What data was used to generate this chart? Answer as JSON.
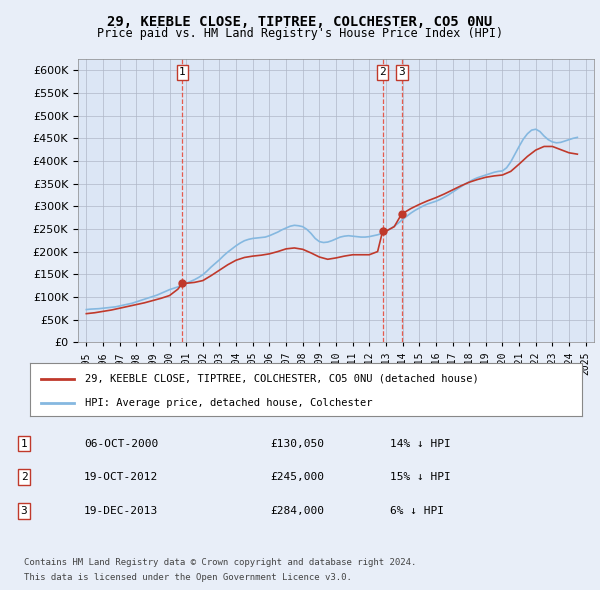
{
  "title": "29, KEEBLE CLOSE, TIPTREE, COLCHESTER, CO5 0NU",
  "subtitle": "Price paid vs. HM Land Registry's House Price Index (HPI)",
  "bg_color": "#e8eef8",
  "plot_bg_color": "#dce6f5",
  "legend_line1": "29, KEEBLE CLOSE, TIPTREE, COLCHESTER, CO5 0NU (detached house)",
  "legend_line2": "HPI: Average price, detached house, Colchester",
  "footer1": "Contains HM Land Registry data © Crown copyright and database right 2024.",
  "footer2": "This data is licensed under the Open Government Licence v3.0.",
  "transactions": [
    {
      "num": 1,
      "date": "06-OCT-2000",
      "price": "£130,050",
      "hpi": "14% ↓ HPI",
      "year": 2000.77
    },
    {
      "num": 2,
      "date": "19-OCT-2012",
      "price": "£245,000",
      "hpi": "15% ↓ HPI",
      "year": 2012.8
    },
    {
      "num": 3,
      "date": "19-DEC-2013",
      "price": "£284,000",
      "hpi": "6% ↓ HPI",
      "year": 2013.96
    }
  ],
  "transaction_prices": [
    130050,
    245000,
    284000
  ],
  "transaction_years": [
    2000.77,
    2012.8,
    2013.96
  ],
  "ylim": [
    0,
    625000
  ],
  "yticks": [
    0,
    50000,
    100000,
    150000,
    200000,
    250000,
    300000,
    350000,
    400000,
    450000,
    500000,
    550000,
    600000
  ],
  "xlim_start": 1994.5,
  "xlim_end": 2025.5,
  "xticks": [
    1995,
    1996,
    1997,
    1998,
    1999,
    2000,
    2001,
    2002,
    2003,
    2004,
    2005,
    2006,
    2007,
    2008,
    2009,
    2010,
    2011,
    2012,
    2013,
    2014,
    2015,
    2016,
    2017,
    2018,
    2019,
    2020,
    2021,
    2022,
    2023,
    2024,
    2025
  ],
  "property_color": "#c0392b",
  "hpi_color": "#85b8e0",
  "dashed_line_color": "#e74c3c",
  "marker_color": "#c0392b",
  "hpi_years": [
    1995.0,
    1995.25,
    1995.5,
    1995.75,
    1996.0,
    1996.25,
    1996.5,
    1996.75,
    1997.0,
    1997.25,
    1997.5,
    1997.75,
    1998.0,
    1998.25,
    1998.5,
    1998.75,
    1999.0,
    1999.25,
    1999.5,
    1999.75,
    2000.0,
    2000.25,
    2000.5,
    2000.75,
    2001.0,
    2001.25,
    2001.5,
    2001.75,
    2002.0,
    2002.25,
    2002.5,
    2002.75,
    2003.0,
    2003.25,
    2003.5,
    2003.75,
    2004.0,
    2004.25,
    2004.5,
    2004.75,
    2005.0,
    2005.25,
    2005.5,
    2005.75,
    2006.0,
    2006.25,
    2006.5,
    2006.75,
    2007.0,
    2007.25,
    2007.5,
    2007.75,
    2008.0,
    2008.25,
    2008.5,
    2008.75,
    2009.0,
    2009.25,
    2009.5,
    2009.75,
    2010.0,
    2010.25,
    2010.5,
    2010.75,
    2011.0,
    2011.25,
    2011.5,
    2011.75,
    2012.0,
    2012.25,
    2012.5,
    2012.75,
    2013.0,
    2013.25,
    2013.5,
    2013.75,
    2014.0,
    2014.25,
    2014.5,
    2014.75,
    2015.0,
    2015.25,
    2015.5,
    2015.75,
    2016.0,
    2016.25,
    2016.5,
    2016.75,
    2017.0,
    2017.25,
    2017.5,
    2017.75,
    2018.0,
    2018.25,
    2018.5,
    2018.75,
    2019.0,
    2019.25,
    2019.5,
    2019.75,
    2020.0,
    2020.25,
    2020.5,
    2020.75,
    2021.0,
    2021.25,
    2021.5,
    2021.75,
    2022.0,
    2022.25,
    2022.5,
    2022.75,
    2023.0,
    2023.25,
    2023.5,
    2023.75,
    2024.0,
    2024.25,
    2024.5
  ],
  "hpi_values": [
    72000,
    73000,
    73500,
    74000,
    75000,
    76000,
    77000,
    78000,
    80000,
    82000,
    84000,
    86000,
    89000,
    92000,
    95000,
    98000,
    101000,
    104000,
    108000,
    112000,
    116000,
    119000,
    122000,
    126000,
    130000,
    134000,
    138000,
    143000,
    149000,
    157000,
    166000,
    174000,
    182000,
    191000,
    199000,
    206000,
    213000,
    219000,
    224000,
    227000,
    229000,
    230000,
    231000,
    232000,
    235000,
    239000,
    243000,
    248000,
    252000,
    256000,
    258000,
    257000,
    255000,
    249000,
    240000,
    229000,
    222000,
    220000,
    221000,
    224000,
    228000,
    232000,
    234000,
    235000,
    234000,
    233000,
    232000,
    232000,
    233000,
    235000,
    237000,
    240000,
    245000,
    250000,
    256000,
    263000,
    271000,
    278000,
    285000,
    291000,
    296000,
    301000,
    305000,
    308000,
    311000,
    315000,
    320000,
    325000,
    331000,
    337000,
    343000,
    349000,
    354000,
    359000,
    363000,
    366000,
    369000,
    372000,
    375000,
    377000,
    378000,
    385000,
    398000,
    415000,
    432000,
    448000,
    460000,
    468000,
    470000,
    465000,
    455000,
    447000,
    442000,
    440000,
    441000,
    444000,
    447000,
    450000,
    452000
  ],
  "property_years": [
    1995.0,
    1995.5,
    1996.0,
    1996.5,
    1997.0,
    1997.5,
    1998.0,
    1998.5,
    1999.0,
    1999.5,
    2000.0,
    2000.5,
    2000.77,
    2001.0,
    2001.5,
    2002.0,
    2002.5,
    2003.0,
    2003.5,
    2004.0,
    2004.5,
    2005.0,
    2005.5,
    2006.0,
    2006.5,
    2007.0,
    2007.5,
    2008.0,
    2008.5,
    2009.0,
    2009.5,
    2010.0,
    2010.5,
    2011.0,
    2011.5,
    2012.0,
    2012.5,
    2012.8,
    2013.0,
    2013.5,
    2013.96,
    2014.0,
    2014.5,
    2015.0,
    2015.5,
    2016.0,
    2016.5,
    2017.0,
    2017.5,
    2018.0,
    2018.5,
    2019.0,
    2019.5,
    2020.0,
    2020.5,
    2021.0,
    2021.5,
    2022.0,
    2022.5,
    2023.0,
    2023.5,
    2024.0,
    2024.5
  ],
  "property_values": [
    63000,
    65000,
    68000,
    71000,
    75000,
    79000,
    83000,
    87000,
    92000,
    97000,
    103000,
    117000,
    130050,
    130050,
    132000,
    136000,
    147000,
    159000,
    171000,
    181000,
    187000,
    190000,
    192000,
    195000,
    200000,
    206000,
    208000,
    205000,
    197000,
    188000,
    183000,
    186000,
    190000,
    193000,
    193000,
    193000,
    200000,
    245000,
    245000,
    255000,
    284000,
    284000,
    295000,
    304000,
    312000,
    319000,
    327000,
    336000,
    345000,
    353000,
    359000,
    364000,
    367000,
    369000,
    377000,
    393000,
    410000,
    424000,
    432000,
    432000,
    425000,
    418000,
    415000
  ]
}
